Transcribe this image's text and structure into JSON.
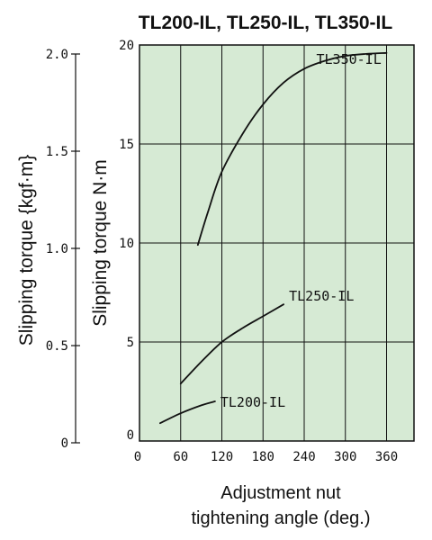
{
  "chart_data": {
    "type": "line",
    "title": "TL200-IL, TL250-IL, TL350-IL",
    "xlabel_lines": [
      "Adjustment nut",
      "tightening angle (deg.)"
    ],
    "ylabel": "Slipping torque N·m",
    "ylabel_secondary": "Slipping torque {kgf·m}",
    "xlim": [
      0,
      400
    ],
    "ylim": [
      0,
      20
    ],
    "secondary_ylim": [
      0,
      2.0
    ],
    "x_ticks": [
      "0",
      "60",
      "120",
      "180",
      "240",
      "300",
      "360"
    ],
    "x_tick_values": [
      0,
      60,
      120,
      180,
      240,
      300,
      360
    ],
    "y_ticks": [
      "0",
      "5",
      "10",
      "15",
      "20"
    ],
    "y_tick_values": [
      0,
      5,
      10,
      15,
      20
    ],
    "secondary_y_ticks": [
      "0",
      "0.5",
      "1.0",
      "1.5",
      "2.0"
    ],
    "secondary_y_tick_values": [
      0,
      0.5,
      1.0,
      1.5,
      2.0
    ],
    "grid": true,
    "colors": {
      "plot_background": "#d6ead4",
      "line": "#111111"
    },
    "series": [
      {
        "name": "TL200-IL",
        "x": [
          30,
          60,
          90,
          110
        ],
        "y": [
          0.9,
          1.4,
          1.8,
          2.0
        ]
      },
      {
        "name": "TL250-IL",
        "x": [
          60,
          90,
          120,
          150,
          180,
          210
        ],
        "y": [
          2.9,
          4.0,
          5.0,
          5.7,
          6.3,
          6.9
        ]
      },
      {
        "name": "TL350-IL",
        "x": [
          85,
          100,
          120,
          150,
          180,
          210,
          240,
          270,
          300,
          330,
          360
        ],
        "y": [
          9.9,
          11.6,
          13.6,
          15.5,
          17.0,
          18.1,
          18.8,
          19.2,
          19.45,
          19.55,
          19.6
        ]
      }
    ]
  }
}
